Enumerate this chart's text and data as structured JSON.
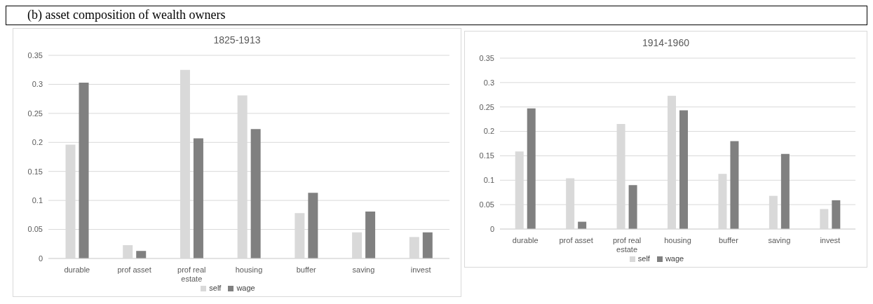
{
  "chart_data": [
    {
      "type": "bar",
      "title": "1825-1913",
      "annotations": [
        "(b)  asset composition of wealth owners"
      ],
      "categories": [
        "durable",
        "prof asset",
        "prof real estate",
        "housing",
        "buffer",
        "saving",
        "invest"
      ],
      "series": [
        {
          "name": "self",
          "color": "#d9d9d9",
          "values": [
            0.196,
            0.023,
            0.325,
            0.281,
            0.078,
            0.045,
            0.037
          ]
        },
        {
          "name": "wage",
          "color": "#808080",
          "values": [
            0.303,
            0.013,
            0.207,
            0.223,
            0.113,
            0.081,
            0.045
          ]
        }
      ],
      "ylim": [
        0,
        0.35
      ],
      "yticks": [
        0,
        0.05,
        0.1,
        0.15,
        0.2,
        0.25,
        0.3,
        0.35
      ],
      "grid": "y",
      "legend": "bottom"
    },
    {
      "type": "bar",
      "title": "1914-1960",
      "categories": [
        "durable",
        "prof asset",
        "prof real estate",
        "housing",
        "buffer",
        "saving",
        "invest"
      ],
      "series": [
        {
          "name": "self",
          "color": "#d9d9d9",
          "values": [
            0.159,
            0.104,
            0.215,
            0.273,
            0.113,
            0.068,
            0.041
          ]
        },
        {
          "name": "wage",
          "color": "#808080",
          "values": [
            0.247,
            0.015,
            0.09,
            0.243,
            0.18,
            0.154,
            0.059
          ]
        }
      ],
      "ylim": [
        0,
        0.35
      ],
      "yticks": [
        0,
        0.05,
        0.1,
        0.15,
        0.2,
        0.25,
        0.3,
        0.35
      ],
      "grid": "y",
      "legend": "bottom"
    }
  ]
}
